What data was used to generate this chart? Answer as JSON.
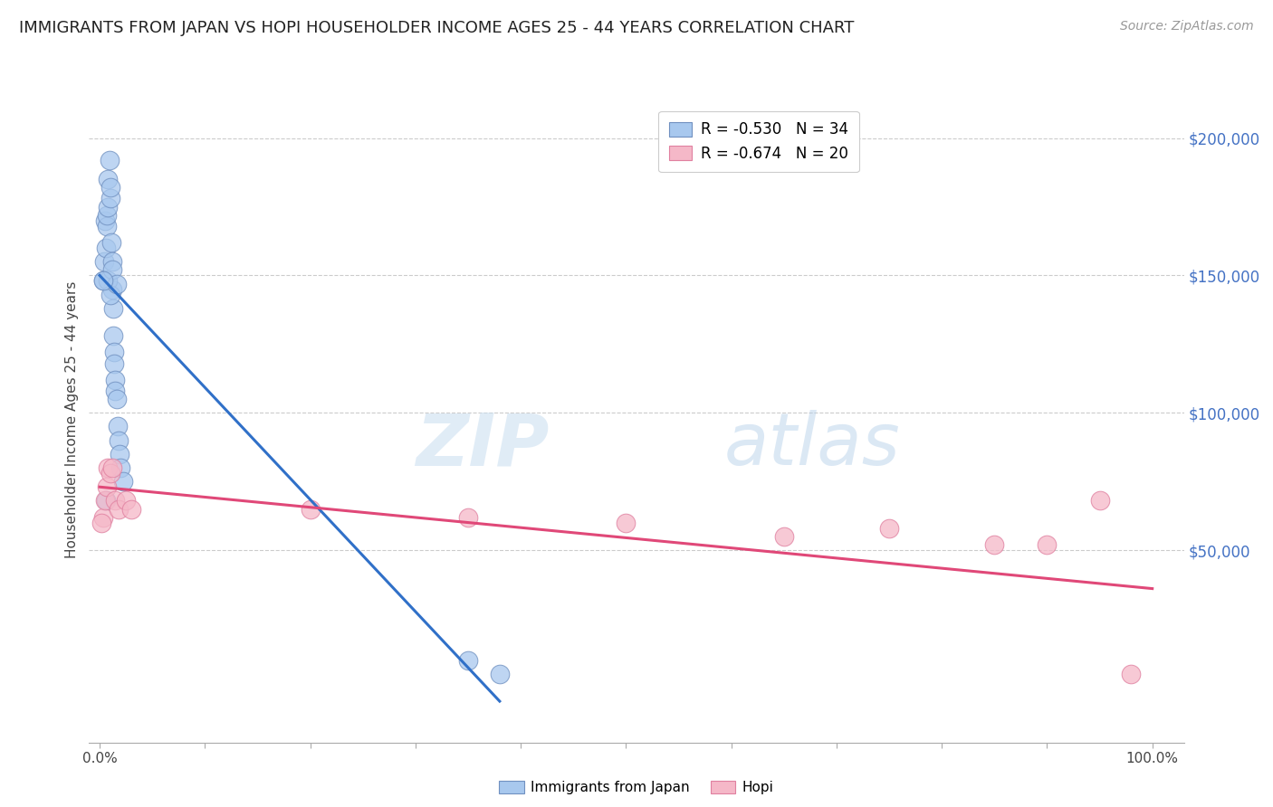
{
  "title": "IMMIGRANTS FROM JAPAN VS HOPI HOUSEHOLDER INCOME AGES 25 - 44 YEARS CORRELATION CHART",
  "source": "Source: ZipAtlas.com",
  "ylabel": "Householder Income Ages 25 - 44 years",
  "ytick_labels": [
    "$200,000",
    "$150,000",
    "$100,000",
    "$50,000"
  ],
  "ytick_values": [
    200000,
    150000,
    100000,
    50000
  ],
  "ymax": 215000,
  "ymin": -20000,
  "xmax": 1.03,
  "xmin": -0.01,
  "legend_blue_r": "R = -0.530",
  "legend_blue_n": "N = 34",
  "legend_pink_r": "R = -0.674",
  "legend_pink_n": "N = 20",
  "blue_scatter_x": [
    0.003,
    0.004,
    0.005,
    0.006,
    0.007,
    0.007,
    0.008,
    0.008,
    0.009,
    0.01,
    0.01,
    0.011,
    0.012,
    0.012,
    0.013,
    0.013,
    0.014,
    0.014,
    0.015,
    0.015,
    0.016,
    0.017,
    0.018,
    0.019,
    0.02,
    0.022,
    0.008,
    0.01,
    0.012,
    0.016,
    0.006,
    0.003,
    0.38,
    0.35
  ],
  "blue_scatter_y": [
    148000,
    155000,
    170000,
    160000,
    168000,
    172000,
    175000,
    185000,
    192000,
    178000,
    182000,
    162000,
    155000,
    145000,
    138000,
    128000,
    122000,
    118000,
    112000,
    108000,
    105000,
    95000,
    90000,
    85000,
    80000,
    75000,
    148000,
    143000,
    152000,
    147000,
    68000,
    148000,
    5000,
    10000
  ],
  "pink_scatter_x": [
    0.003,
    0.005,
    0.007,
    0.008,
    0.01,
    0.012,
    0.015,
    0.018,
    0.025,
    0.03,
    0.2,
    0.35,
    0.5,
    0.65,
    0.75,
    0.85,
    0.9,
    0.95,
    0.98,
    0.002
  ],
  "pink_scatter_y": [
    62000,
    68000,
    73000,
    80000,
    78000,
    80000,
    68000,
    65000,
    68000,
    65000,
    65000,
    62000,
    60000,
    55000,
    58000,
    52000,
    52000,
    68000,
    5000,
    60000
  ],
  "blue_line_x": [
    0.0,
    0.38
  ],
  "blue_line_y": [
    150000,
    -5000
  ],
  "pink_line_x": [
    0.0,
    1.0
  ],
  "pink_line_y": [
    73000,
    36000
  ],
  "blue_color": "#a8c8ee",
  "pink_color": "#f5b8c8",
  "blue_edge_color": "#7090c0",
  "pink_edge_color": "#e080a0",
  "blue_line_color": "#3070c8",
  "pink_line_color": "#e04878",
  "watermark_zip": "ZIP",
  "watermark_atlas": "atlas",
  "background_color": "#ffffff",
  "grid_color": "#cccccc",
  "yaxis_label_color": "#4472c4",
  "title_fontsize": 13,
  "source_fontsize": 10
}
